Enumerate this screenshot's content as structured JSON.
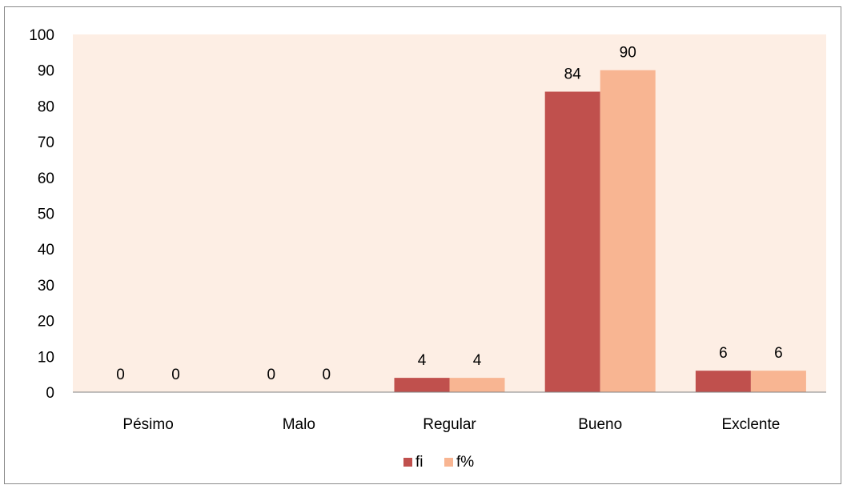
{
  "chart_data": {
    "type": "bar",
    "title": "",
    "xlabel": "",
    "ylabel": "",
    "categories": [
      "Pésimo",
      "Malo",
      "Regular",
      "Bueno",
      "Exclente"
    ],
    "series": [
      {
        "name": "fi",
        "values": [
          0,
          0,
          4,
          84,
          6
        ],
        "color": "#c0504d"
      },
      {
        "name": "f%",
        "values": [
          0,
          0,
          4,
          90,
          6
        ],
        "color": "#f8b592"
      }
    ],
    "ylim": [
      0,
      100
    ],
    "yticks": [
      0,
      10,
      20,
      30,
      40,
      50,
      60,
      70,
      80,
      90,
      100
    ],
    "grid": false,
    "legend_position": "bottom",
    "plot_background": "#fdeee4",
    "data_labels": true
  }
}
